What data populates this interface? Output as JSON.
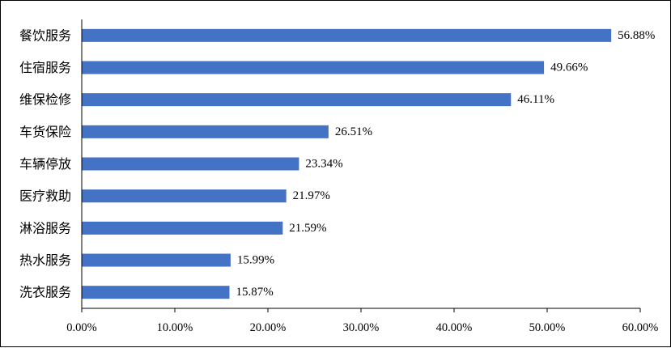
{
  "chart_data": {
    "type": "bar",
    "orientation": "horizontal",
    "categories": [
      "餐饮服务",
      "住宿服务",
      "维保检修",
      "车货保险",
      "车辆停放",
      "医疗救助",
      "淋浴服务",
      "热水服务",
      "洗衣服务"
    ],
    "values": [
      56.88,
      49.66,
      46.11,
      26.51,
      23.34,
      21.97,
      21.59,
      15.99,
      15.87
    ],
    "value_labels": [
      "56.88%",
      "49.66%",
      "46.11%",
      "26.51%",
      "23.34%",
      "21.97%",
      "21.59%",
      "15.99%",
      "15.87%"
    ],
    "xlim": [
      0,
      60
    ],
    "xticks": [
      0,
      10,
      20,
      30,
      40,
      50,
      60
    ],
    "xtick_labels": [
      "0.00%",
      "10.00%",
      "20.00%",
      "30.00%",
      "40.00%",
      "50.00%",
      "60.00%"
    ],
    "bar_color": "#4472c4",
    "grid": false,
    "title": "",
    "xlabel": "",
    "ylabel": ""
  }
}
